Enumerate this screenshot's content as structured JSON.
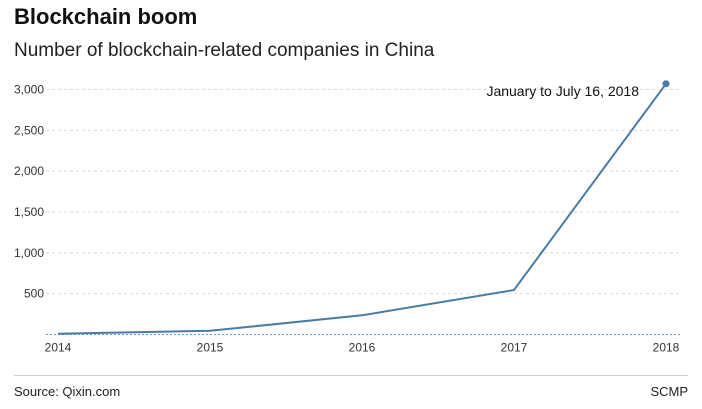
{
  "header": {
    "title": "Blockchain boom",
    "subtitle": "Number of blockchain-related companies in China"
  },
  "footer": {
    "source": "Source: Qixin.com",
    "brand": "SCMP"
  },
  "colors": {
    "line": "#4a7ba6",
    "grid": "#d9d9d9",
    "baseline": "#6a9bc8"
  },
  "chart_data": {
    "type": "line",
    "title": "Blockchain boom",
    "subtitle": "Number of blockchain-related companies in China",
    "x": [
      "2014",
      "2015",
      "2016",
      "2017",
      "2018"
    ],
    "series": [
      {
        "values": [
          10,
          45,
          235,
          545,
          3070
        ]
      }
    ],
    "ylim": [
      0,
      3000
    ],
    "yticks": [
      500,
      1000,
      1500,
      2000,
      2500,
      3000
    ],
    "ytick_labels": [
      "500",
      "1,000",
      "1,500",
      "2,000",
      "2,500",
      "3,000"
    ],
    "grid": true,
    "annotations": [
      {
        "x": "2018",
        "text": "January to July 16, 2018"
      }
    ]
  }
}
